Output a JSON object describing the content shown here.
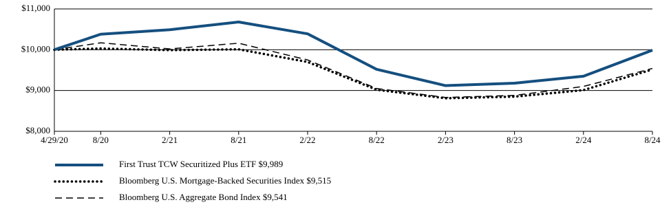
{
  "chart_data": {
    "type": "line",
    "categories": [
      "4/29/20",
      "8/20",
      "2/21",
      "8/21",
      "2/22",
      "8/22",
      "2/23",
      "8/23",
      "2/24",
      "8/24"
    ],
    "series": [
      {
        "name": "First Trust TCW Securitized Plus ETF $9,989",
        "color": "#154f7f",
        "style": "solid",
        "values": [
          10000,
          10380,
          10490,
          10680,
          10390,
          9520,
          9120,
          9180,
          9350,
          9989
        ]
      },
      {
        "name": "Bloomberg U.S. Mortgage-Backed Securities Index $9,515",
        "color": "#000000",
        "style": "dotted",
        "values": [
          10000,
          10030,
          9990,
          10010,
          9700,
          9020,
          8810,
          8850,
          9010,
          9515
        ]
      },
      {
        "name": "Bloomberg U.S. Aggregate Bond Index $9,541",
        "color": "#000000",
        "style": "dashed",
        "values": [
          10000,
          10170,
          10020,
          10160,
          9750,
          9050,
          8830,
          8880,
          9100,
          9541
        ]
      }
    ],
    "ylim": [
      8000,
      11000
    ],
    "yticks": [
      {
        "value": 8000,
        "label": "$8,000"
      },
      {
        "value": 9000,
        "label": "$9,000"
      },
      {
        "value": 10000,
        "label": "$10,000"
      },
      {
        "value": 11000,
        "label": "$11,000"
      }
    ],
    "grid": true
  }
}
